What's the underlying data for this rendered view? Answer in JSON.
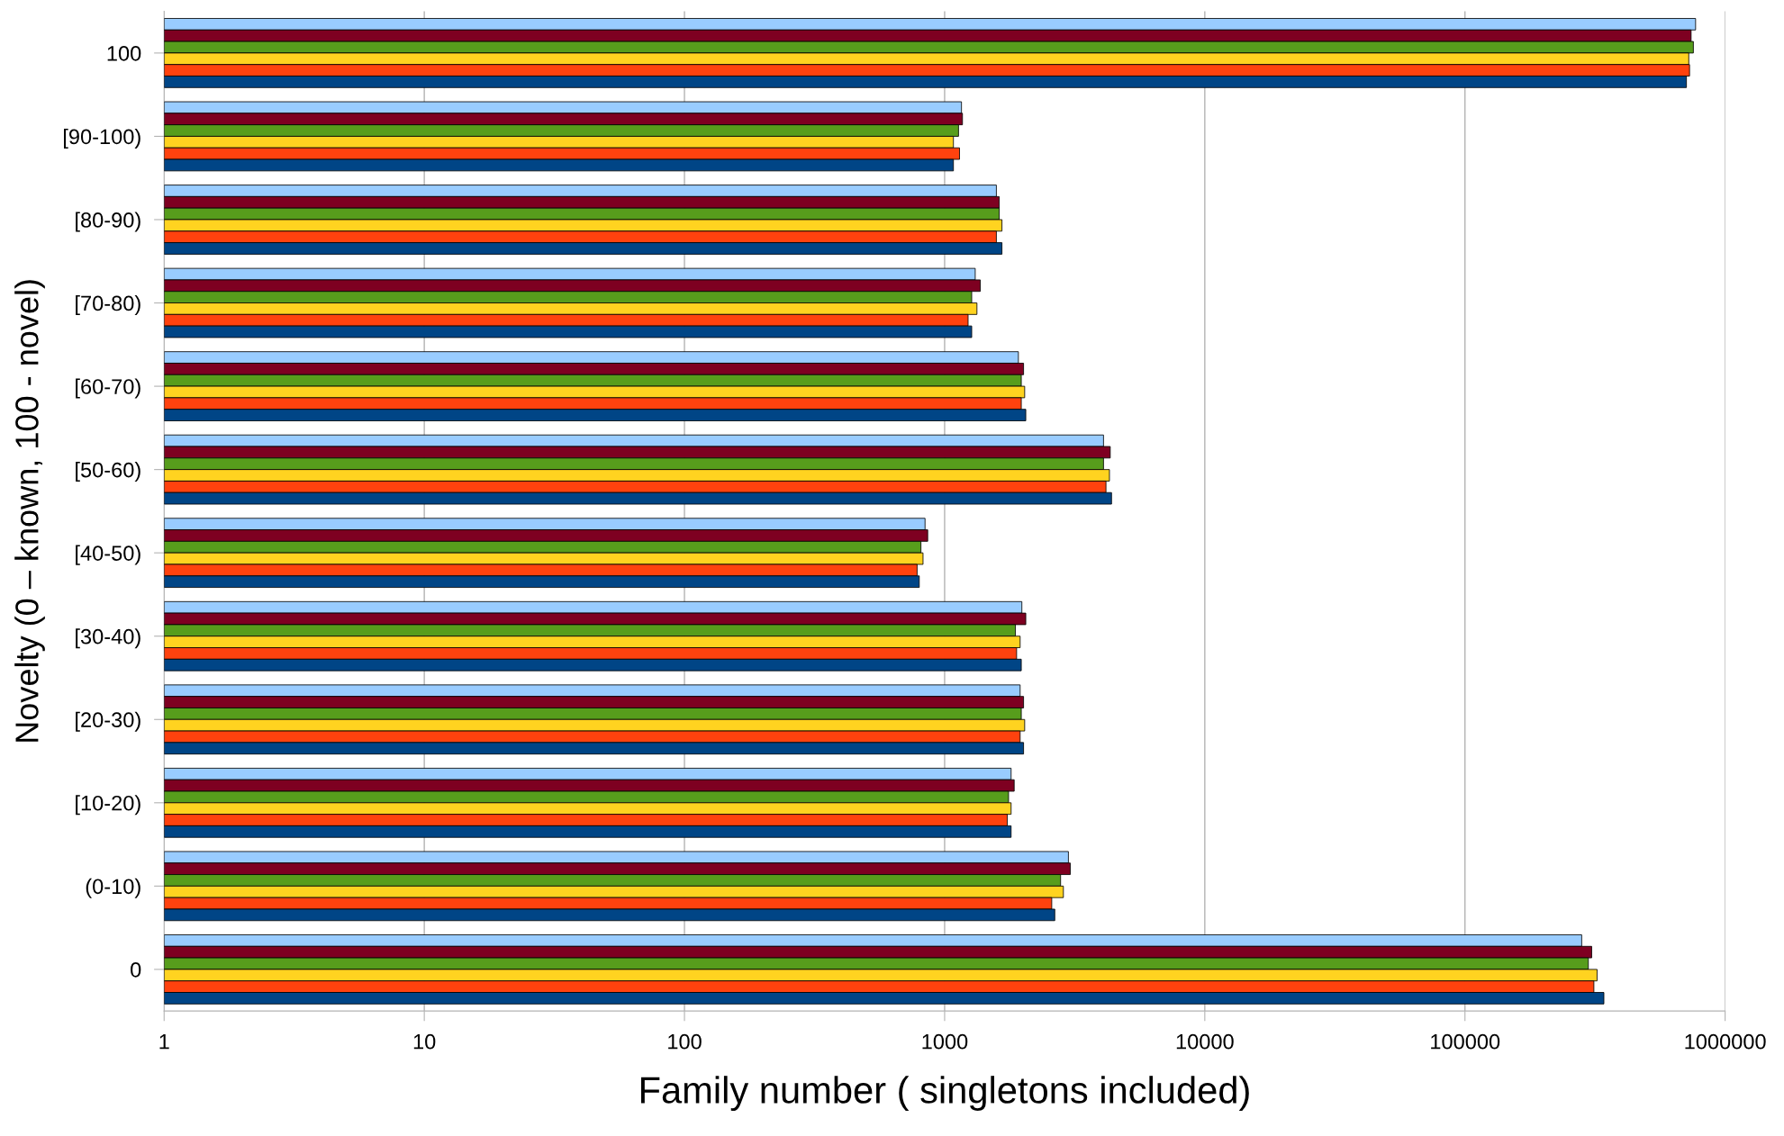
{
  "chart_data": {
    "type": "bar",
    "orientation": "horizontal",
    "log": "x",
    "xlabel": "Family number ( singletons included)",
    "ylabel": "Novelty (0 – known, 100 - novel)",
    "categories": [
      "100",
      "[90-100)",
      "[80-90)",
      "[70-80)",
      "[60-70)",
      "[50-60)",
      "[40-50)",
      "[30-40)",
      "[20-30)",
      "[10-20)",
      "(0-10)",
      "0"
    ],
    "series": [
      {
        "color": "#99ccff",
        "values": [
          770000,
          1160,
          1580,
          1310,
          1920,
          4080,
          840,
          1980,
          1950,
          1800,
          2990,
          281000
        ]
      },
      {
        "color": "#7e0021",
        "values": [
          740000,
          1170,
          1620,
          1370,
          2010,
          4330,
          860,
          2050,
          2010,
          1850,
          3040,
          307000
        ]
      },
      {
        "color": "#579d1c",
        "values": [
          755000,
          1130,
          1620,
          1270,
          1970,
          4080,
          810,
          1870,
          1970,
          1760,
          2790,
          298000
        ]
      },
      {
        "color": "#ffd320",
        "values": [
          725000,
          1080,
          1660,
          1330,
          2030,
          4300,
          825,
          1950,
          2030,
          1800,
          2860,
          322000
        ]
      },
      {
        "color": "#ff420e",
        "values": [
          730000,
          1140,
          1580,
          1230,
          1970,
          4170,
          783,
          1890,
          1950,
          1740,
          2580,
          313000
        ]
      },
      {
        "color": "#004586",
        "values": [
          710000,
          1080,
          1660,
          1270,
          2050,
          4380,
          798,
          1970,
          2010,
          1800,
          2650,
          342000
        ]
      }
    ],
    "xlim": [
      1,
      1000000
    ],
    "xticks": [
      1,
      10,
      100,
      1000,
      10000,
      100000,
      1000000
    ],
    "grid": "x",
    "legend": false
  }
}
